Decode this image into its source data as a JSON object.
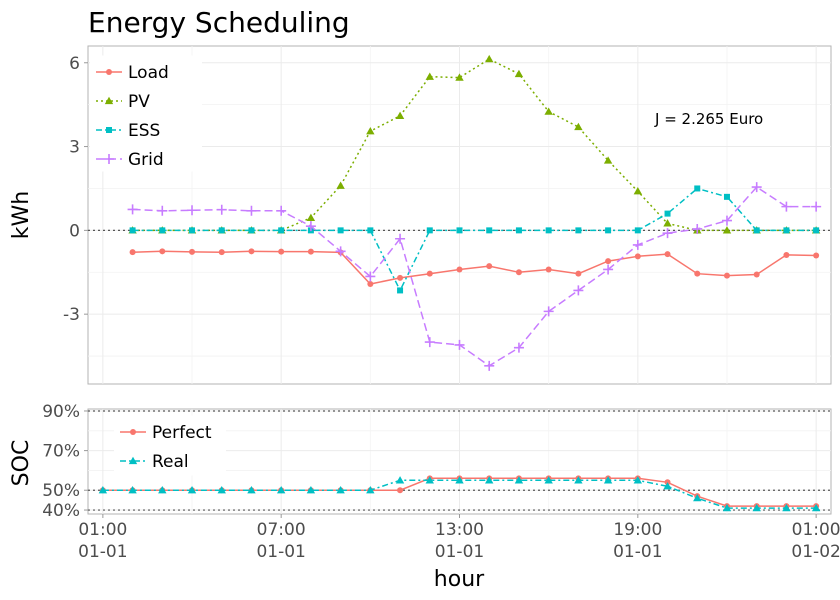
{
  "title": "Energy Scheduling",
  "annotation": "J = 2.265 Euro",
  "xlabel": "hour",
  "x_ticks": [
    {
      "hour": 1,
      "time": "01:00",
      "date": "01-01"
    },
    {
      "hour": 7,
      "time": "07:00",
      "date": "01-01"
    },
    {
      "hour": 13,
      "time": "13:00",
      "date": "01-01"
    },
    {
      "hour": 19,
      "time": "19:00",
      "date": "01-01"
    },
    {
      "hour": 25,
      "time": "01:00",
      "date": "01-02"
    }
  ],
  "chart_data": [
    {
      "type": "line",
      "ylabel": "kWh",
      "ylim": [
        -5.5,
        6.6
      ],
      "xlim": [
        0.5,
        25.5
      ],
      "y_ticks": [
        -3,
        0,
        3,
        6
      ],
      "y_tick_labels": [
        "-3",
        "0",
        "3",
        "6"
      ],
      "reference_line": 0,
      "legend_position": "top-left",
      "x": [
        2,
        3,
        4,
        5,
        6,
        7,
        8,
        9,
        10,
        11,
        12,
        13,
        14,
        15,
        16,
        17,
        18,
        19,
        20,
        21,
        22,
        23,
        24,
        25
      ],
      "series": [
        {
          "name": "Load",
          "color": "#F8766D",
          "marker": "circle",
          "dash": "solid",
          "values": [
            -0.78,
            -0.75,
            -0.77,
            -0.78,
            -0.75,
            -0.76,
            -0.76,
            -0.79,
            -1.92,
            -1.7,
            -1.55,
            -1.4,
            -1.28,
            -1.5,
            -1.4,
            -1.55,
            -1.1,
            -0.93,
            -0.85,
            -1.55,
            -1.62,
            -1.58,
            -0.88,
            -0.9
          ]
        },
        {
          "name": "PV",
          "color": "#7CAE00",
          "marker": "triangle",
          "dash": "dotted",
          "values": [
            0,
            0,
            0,
            0,
            0,
            0,
            0.45,
            1.6,
            3.55,
            4.1,
            5.5,
            5.47,
            6.13,
            5.6,
            4.25,
            3.7,
            2.5,
            1.4,
            0.25,
            0,
            0,
            0,
            0,
            0
          ]
        },
        {
          "name": "ESS",
          "color": "#00BFC4",
          "marker": "square",
          "dash": "dashdot",
          "values": [
            0,
            0,
            0,
            0,
            0,
            0,
            0,
            0,
            0,
            -2.15,
            0,
            0,
            0,
            0,
            0,
            0,
            0,
            0,
            0.6,
            1.5,
            1.2,
            0,
            0,
            0
          ]
        },
        {
          "name": "Grid",
          "color": "#C77CFF",
          "marker": "plus",
          "dash": "longdash",
          "values": [
            0.75,
            0.7,
            0.72,
            0.74,
            0.7,
            0.7,
            0.15,
            -0.75,
            -1.65,
            -0.3,
            -4.0,
            -4.1,
            -4.85,
            -4.2,
            -2.9,
            -2.15,
            -1.4,
            -0.52,
            -0.1,
            0.05,
            0.35,
            1.55,
            0.85,
            0.85
          ]
        }
      ]
    },
    {
      "type": "line",
      "ylabel": "SOC",
      "ylim": [
        38,
        91
      ],
      "xlim": [
        0.5,
        25.5
      ],
      "y_ticks": [
        40,
        50,
        70,
        90
      ],
      "y_tick_labels": [
        "40%",
        "50%",
        "70%",
        "90%"
      ],
      "reference_lines": [
        90,
        50,
        40
      ],
      "legend_position": "top-left",
      "x": [
        1,
        2,
        3,
        4,
        5,
        6,
        7,
        8,
        9,
        10,
        11,
        12,
        13,
        14,
        15,
        16,
        17,
        18,
        19,
        20,
        21,
        22,
        23,
        24,
        25
      ],
      "series": [
        {
          "name": "Perfect",
          "color": "#F8766D",
          "marker": "circle",
          "dash": "solid",
          "values": [
            50,
            50,
            50,
            50,
            50,
            50,
            50,
            50,
            50,
            50,
            50,
            56,
            56,
            56,
            56,
            56,
            56,
            56,
            56,
            54,
            47,
            42,
            42,
            42,
            42
          ]
        },
        {
          "name": "Real",
          "color": "#00BFC4",
          "marker": "triangle",
          "dash": "dashdot",
          "values": [
            50,
            50,
            50,
            50,
            50,
            50,
            50,
            50,
            50,
            50,
            55,
            55,
            55,
            55,
            55,
            55,
            55,
            55,
            55,
            52,
            46,
            41,
            41,
            41,
            41
          ]
        }
      ]
    }
  ]
}
